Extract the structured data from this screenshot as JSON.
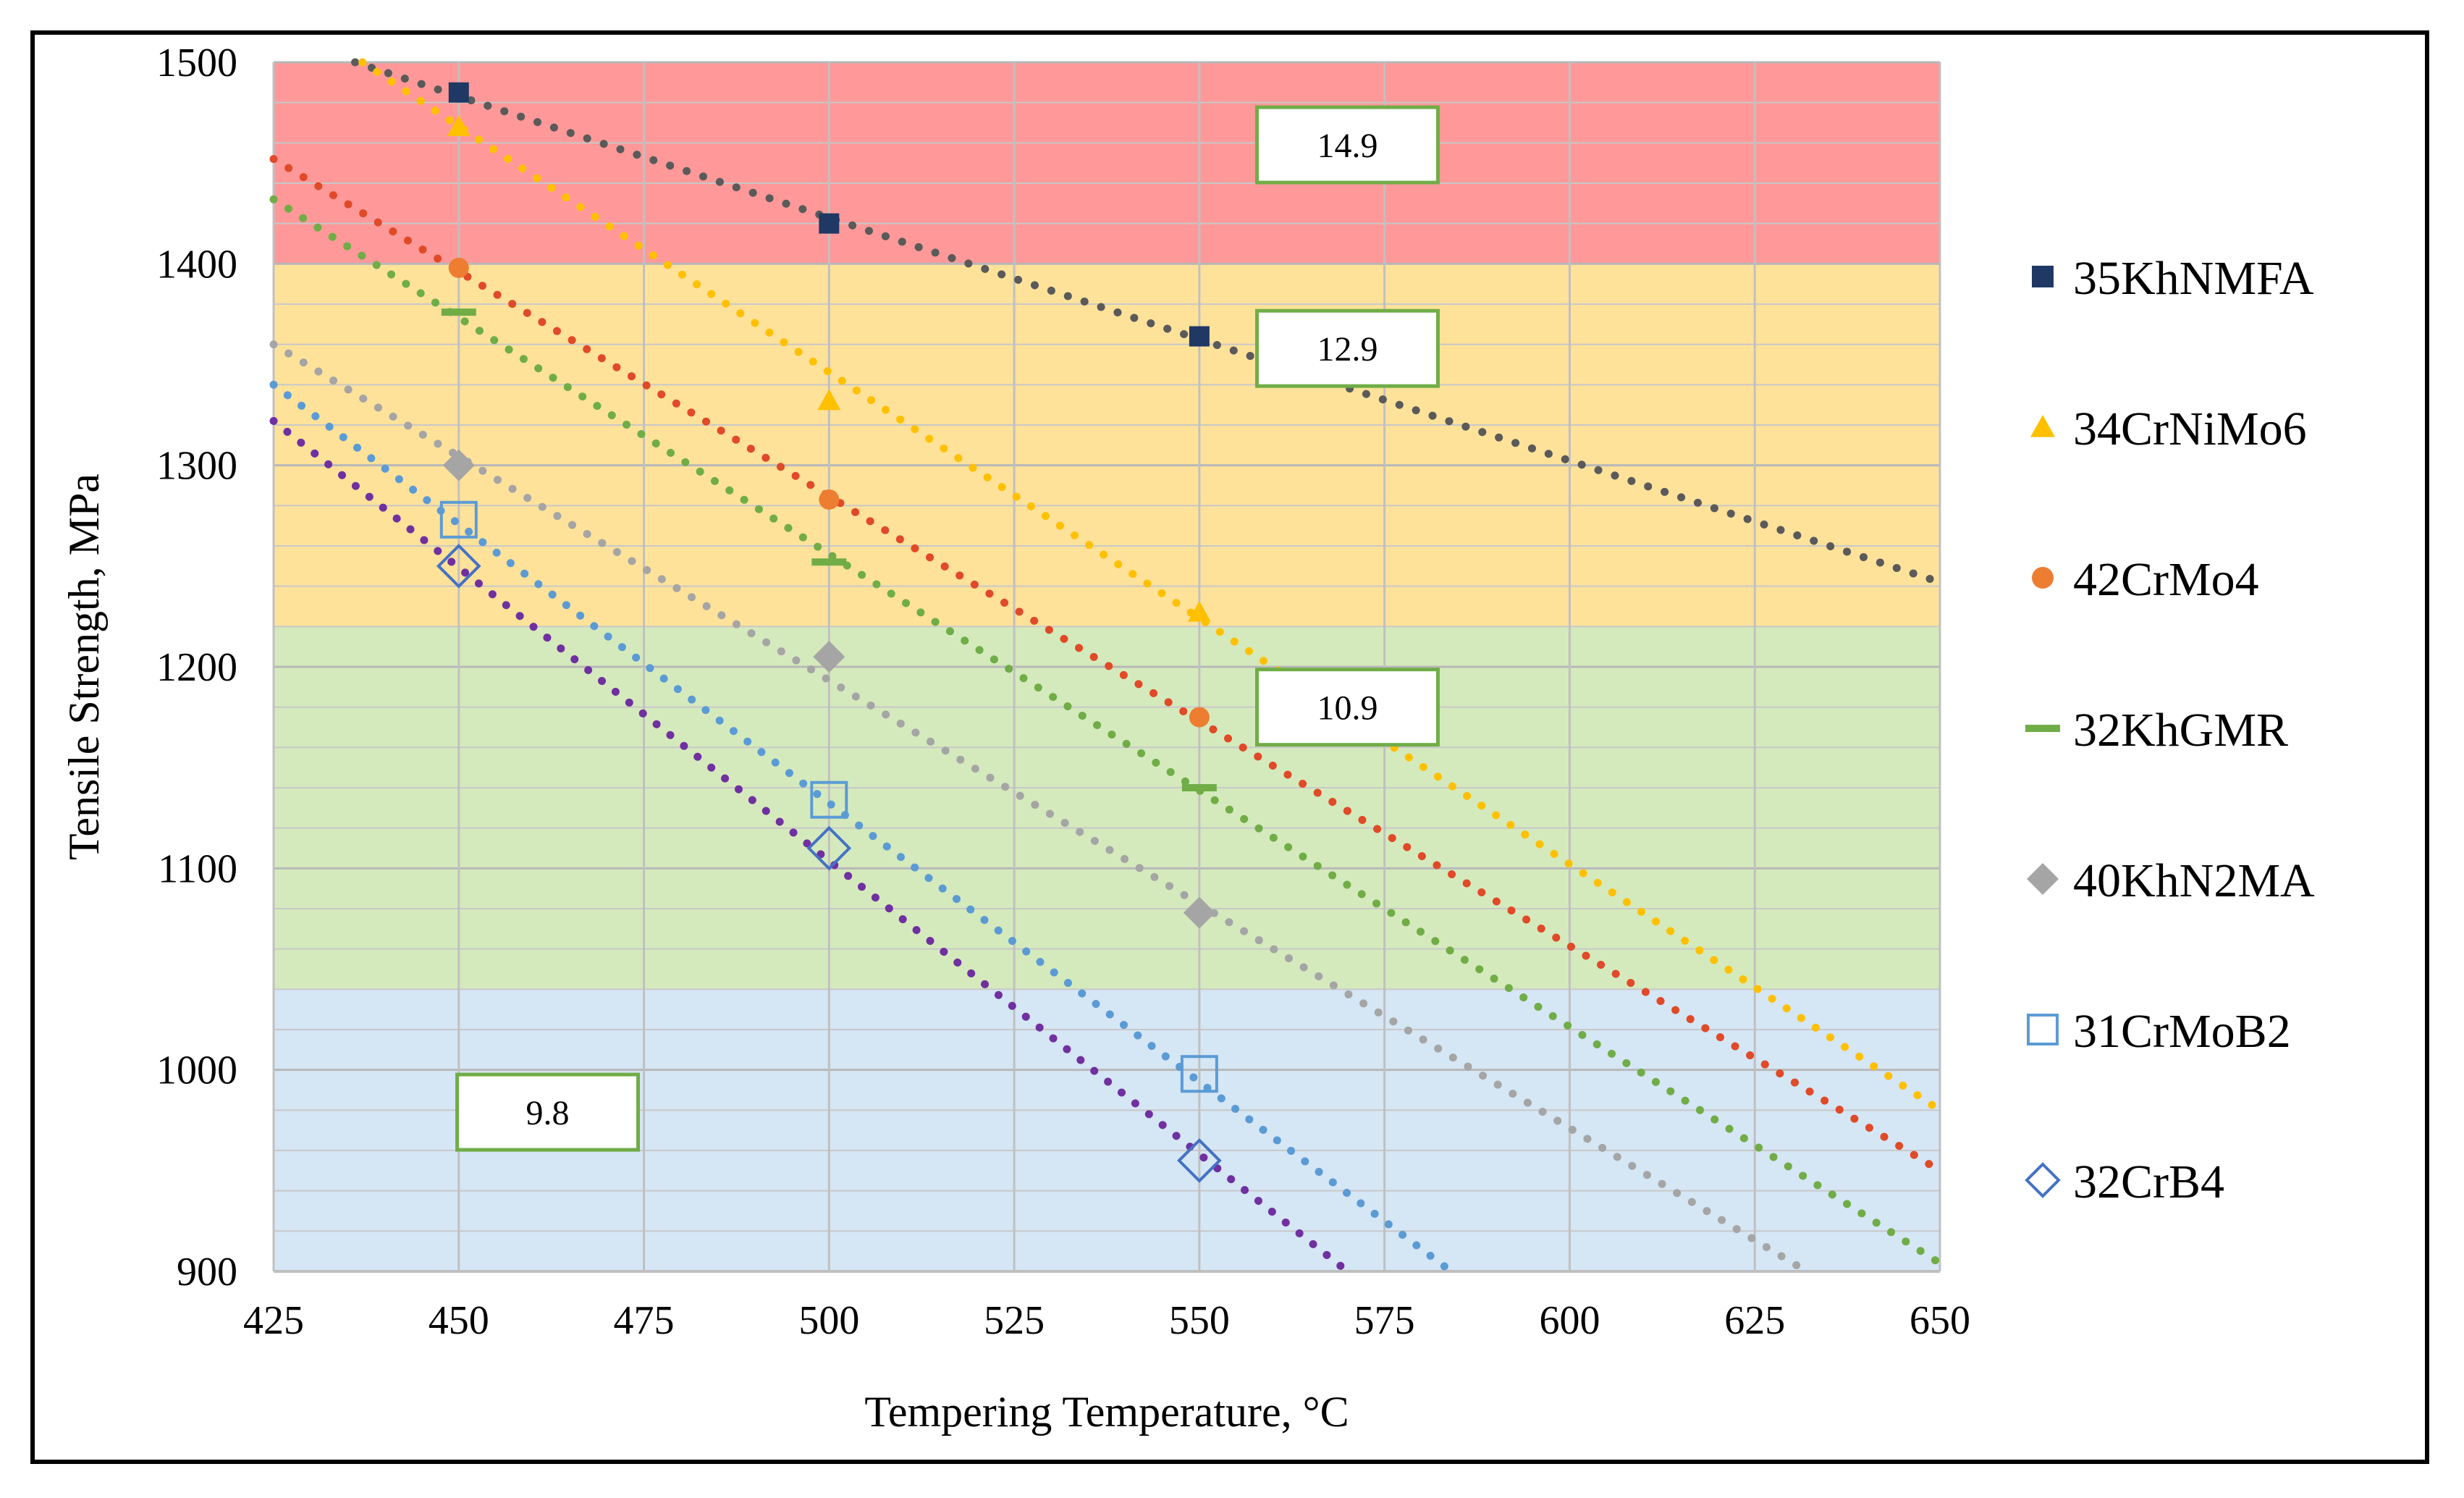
{
  "chart_data": {
    "type": "scatter",
    "title": "",
    "xlabel": "Tempering Temperature, °C",
    "ylabel": "Tensile Strength, MPa",
    "xlim": [
      425,
      650
    ],
    "ylim": [
      900,
      1500
    ],
    "x_ticks": [
      425,
      450,
      475,
      500,
      525,
      550,
      575,
      600,
      625,
      650
    ],
    "y_ticks": [
      900,
      1000,
      1100,
      1200,
      1300,
      1400,
      1500
    ],
    "grid": true,
    "minor_y_step": 20,
    "legend_position": "right",
    "bands": [
      {
        "label": "14.9",
        "from": 1400,
        "to": 1500,
        "color": "#ff9999",
        "label_x": 570,
        "label_y": 1459
      },
      {
        "label": "12.9",
        "from": 1220,
        "to": 1400,
        "color": "#ffe29a",
        "label_x": 570,
        "label_y": 1358
      },
      {
        "label": "10.9",
        "from": 1040,
        "to": 1220,
        "color": "#d5eabc",
        "label_x": 570,
        "label_y": 1180
      },
      {
        "label": "9.8",
        "from": 900,
        "to": 1040,
        "color": "#d5e6f5",
        "label_x": 462,
        "label_y": 979
      }
    ],
    "series": [
      {
        "name": "35KhNMFA",
        "marker": "square",
        "color": "#1f3864",
        "points": [
          [
            450,
            1485
          ],
          [
            500,
            1420
          ],
          [
            550,
            1364
          ]
        ],
        "trend": {
          "x0": 436,
          "y0": 1500,
          "x1": 650,
          "y1": 1242,
          "color": "#5a5a5a"
        }
      },
      {
        "name": "34CrNiMo6",
        "marker": "triangle",
        "color": "#ffc000",
        "points": [
          [
            450,
            1468
          ],
          [
            500,
            1332
          ],
          [
            550,
            1227
          ]
        ],
        "trend": {
          "x0": 437,
          "y0": 1500,
          "x1": 650,
          "y1": 980,
          "color": "#ffc000"
        }
      },
      {
        "name": "42CrMo4",
        "marker": "circle",
        "color": "#ed7d31",
        "points": [
          [
            450,
            1398
          ],
          [
            500,
            1283
          ],
          [
            550,
            1175
          ]
        ],
        "trend": {
          "x0": 425,
          "y0": 1452,
          "x1": 650,
          "y1": 950,
          "color": "#e04a28"
        }
      },
      {
        "name": "32KhGMR",
        "marker": "dash",
        "color": "#70ad47",
        "points": [
          [
            450,
            1376
          ],
          [
            500,
            1252
          ],
          [
            550,
            1140
          ]
        ],
        "trend": {
          "x0": 425,
          "y0": 1432,
          "x1": 650,
          "y1": 904,
          "color": "#70ad47"
        }
      },
      {
        "name": "40KhN2MA",
        "marker": "diamond-filled",
        "color": "#a5a5a5",
        "points": [
          [
            450,
            1300
          ],
          [
            500,
            1205
          ],
          [
            550,
            1078
          ]
        ],
        "trend": {
          "x0": 425,
          "y0": 1360,
          "x1": 632,
          "y1": 900,
          "color": "#a5a5a5"
        }
      },
      {
        "name": "31CrMoB2",
        "marker": "square-open",
        "color": "#5b9bd5",
        "points": [
          [
            450,
            1273
          ],
          [
            500,
            1134
          ],
          [
            550,
            998
          ]
        ],
        "trend": {
          "x0": 425,
          "y0": 1340,
          "x1": 584,
          "y1": 900,
          "color": "#5b9bd5"
        }
      },
      {
        "name": "32CrB4",
        "marker": "diamond-open",
        "color": "#4472c4",
        "points": [
          [
            450,
            1250
          ],
          [
            500,
            1110
          ],
          [
            550,
            955
          ]
        ],
        "trend": {
          "x0": 425,
          "y0": 1322,
          "x1": 570,
          "y1": 900,
          "color": "#7030a0"
        }
      }
    ]
  }
}
